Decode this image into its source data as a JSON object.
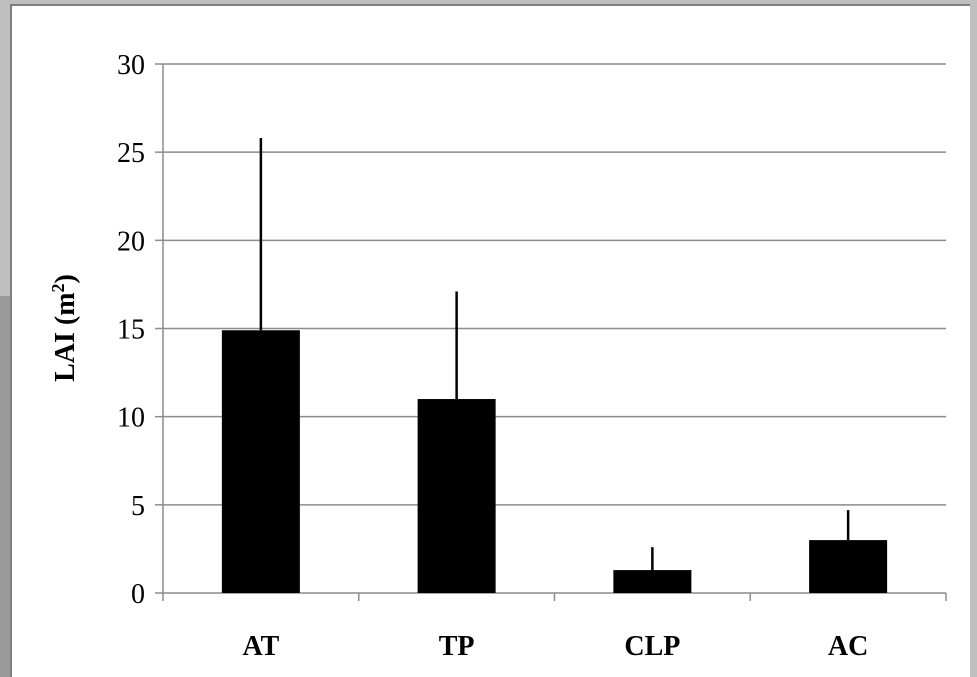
{
  "chart_data": {
    "type": "bar",
    "categories": [
      "AT",
      "TP",
      "CLP",
      "AC"
    ],
    "values": [
      14.9,
      11.0,
      1.3,
      3.0
    ],
    "error_upper": [
      25.8,
      17.1,
      2.6,
      4.7
    ],
    "ylabel": "LAI (m",
    "ylabel_sup": "2",
    "ylabel_end": ")",
    "ylim": [
      0,
      30
    ],
    "yticks": [
      0,
      5,
      10,
      15,
      20,
      25,
      30
    ],
    "grid": true,
    "bar_color": "#000000",
    "grid_color": "#8c8c8c"
  }
}
